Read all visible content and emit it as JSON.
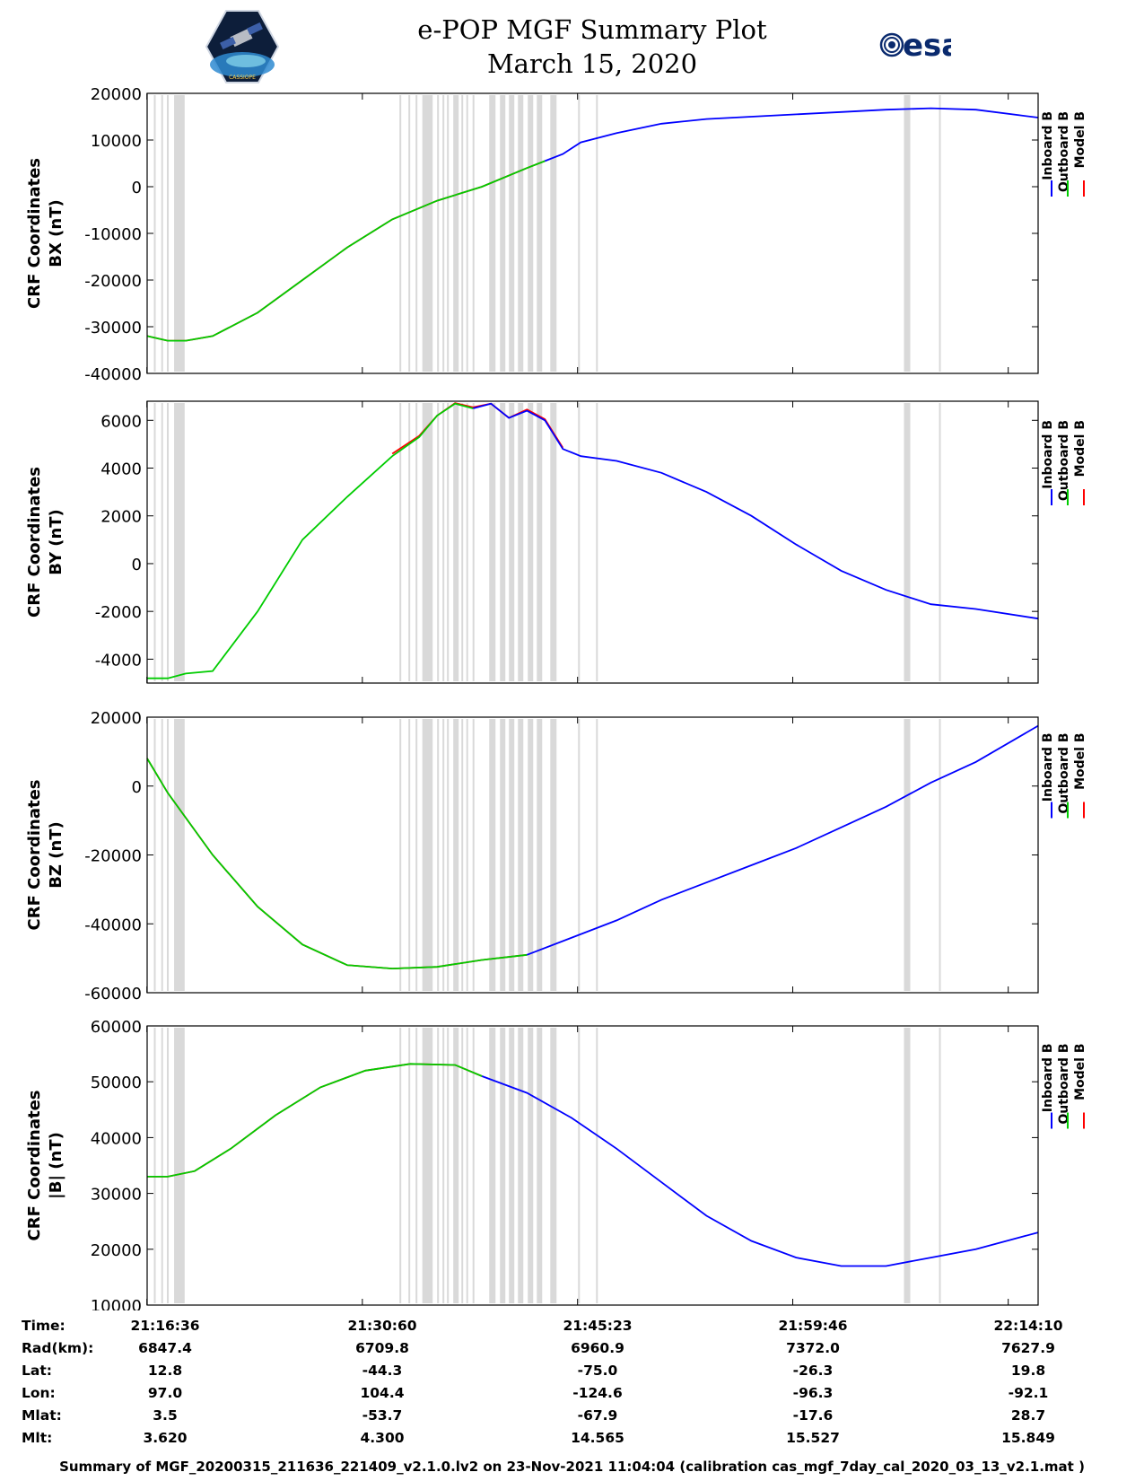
{
  "header": {
    "title_line1": "e-POP MGF Summary Plot",
    "title_line2": "March 15, 2020",
    "left_logo_caption": "CASSIOPE",
    "right_logo_text": "esa"
  },
  "legend": {
    "labels": [
      "Inboard B",
      "Outboard B",
      "Model B"
    ],
    "colors": [
      "#0000ff",
      "#00cc00",
      "#ff0000"
    ]
  },
  "gray_bands": [
    {
      "start": 21.2845,
      "end": 21.286
    },
    {
      "start": 21.2927,
      "end": 21.2942
    },
    {
      "start": 21.299,
      "end": 21.3005
    },
    {
      "start": 21.307,
      "end": 21.3188
    },
    {
      "start": 21.558,
      "end": 21.5596
    },
    {
      "start": 21.568,
      "end": 21.5696
    },
    {
      "start": 21.576,
      "end": 21.5776
    },
    {
      "start": 21.5835,
      "end": 21.595
    },
    {
      "start": 21.6,
      "end": 21.6016
    },
    {
      "start": 21.606,
      "end": 21.6076
    },
    {
      "start": 21.611,
      "end": 21.6126
    },
    {
      "start": 21.618,
      "end": 21.624
    },
    {
      "start": 21.627,
      "end": 21.6286
    },
    {
      "start": 21.6325,
      "end": 21.6341
    },
    {
      "start": 21.6395,
      "end": 21.6411
    },
    {
      "start": 21.658,
      "end": 21.665
    },
    {
      "start": 21.67,
      "end": 21.676
    },
    {
      "start": 21.68,
      "end": 21.686
    },
    {
      "start": 21.69,
      "end": 21.696
    },
    {
      "start": 21.701,
      "end": 21.707
    },
    {
      "start": 21.711,
      "end": 21.717
    },
    {
      "start": 21.726,
      "end": 21.733
    },
    {
      "start": 21.757,
      "end": 21.7586
    },
    {
      "start": 21.777,
      "end": 21.7786
    },
    {
      "start": 22.12,
      "end": 22.127
    },
    {
      "start": 22.159,
      "end": 22.1606
    }
  ],
  "chart_data": [
    {
      "type": "line",
      "panel": "BX",
      "ylabel_line1": "CRF Coordinates",
      "ylabel_line2": "BX (nT)",
      "ylim": [
        -40000,
        20000
      ],
      "yticks": [
        20000,
        10000,
        0,
        -10000,
        -20000,
        -30000,
        -40000
      ],
      "xlim": [
        21.277,
        22.2694
      ],
      "xticks": [
        21.2767,
        21.5167,
        21.7564,
        21.9961,
        22.2361
      ],
      "series": [
        {
          "name": "Inboard B",
          "color": "#0000ff",
          "x": [
            21.72,
            21.74,
            21.76,
            21.8,
            21.85,
            21.9,
            21.95,
            22.0,
            22.05,
            22.1,
            22.15,
            22.2,
            22.2694
          ],
          "y": [
            5500,
            7000,
            9500,
            11500,
            13500,
            14500,
            15000,
            15500,
            16000,
            16500,
            16800,
            16500,
            14800
          ]
        },
        {
          "name": "Outboard B",
          "color": "#00cc00",
          "x": [
            21.277,
            21.3,
            21.32,
            21.35,
            21.4,
            21.45,
            21.5,
            21.55,
            21.6,
            21.65,
            21.7,
            21.72
          ],
          "y": [
            -32000,
            -33000,
            -33000,
            -32000,
            -27000,
            -20000,
            -13000,
            -7000,
            -3000,
            0,
            4000,
            5500
          ]
        },
        {
          "name": "Model B",
          "color": "#ff0000",
          "x": [
            21.277,
            21.3,
            21.32,
            21.35,
            21.4,
            21.45,
            21.5,
            21.55,
            21.6,
            21.65,
            21.7,
            21.72
          ],
          "y": [
            -32000,
            -33000,
            -33000,
            -32000,
            -27000,
            -20000,
            -13000,
            -7000,
            -3000,
            0,
            4000,
            5500
          ]
        }
      ]
    },
    {
      "type": "line",
      "panel": "BY",
      "ylabel_line1": "CRF Coordinates",
      "ylabel_line2": "BY (nT)",
      "ylim": [
        -5000,
        6800
      ],
      "yticks": [
        6000,
        4000,
        2000,
        0,
        -2000,
        -4000
      ],
      "xlim": [
        21.277,
        22.2694
      ],
      "xticks": [
        21.2767,
        21.5167,
        21.7564,
        21.9961,
        22.2361
      ],
      "series": [
        {
          "name": "Inboard B",
          "color": "#0000ff",
          "x": [
            21.64,
            21.66,
            21.68,
            21.7,
            21.72,
            21.74,
            21.76,
            21.8,
            21.85,
            21.9,
            21.95,
            22.0,
            22.05,
            22.1,
            22.15,
            22.2,
            22.2694
          ],
          "y": [
            6500,
            6700,
            6100,
            6400,
            6000,
            4800,
            4500,
            4300,
            3800,
            3000,
            2000,
            800,
            -300,
            -1100,
            -1700,
            -1900,
            -2300
          ]
        },
        {
          "name": "Outboard B",
          "color": "#00cc00",
          "x": [
            21.277,
            21.3,
            21.32,
            21.35,
            21.4,
            21.45,
            21.5,
            21.55,
            21.58,
            21.6,
            21.62,
            21.64
          ],
          "y": [
            -4800,
            -4800,
            -4600,
            -4500,
            -2000,
            1000,
            2800,
            4500,
            5300,
            6200,
            6700,
            6500
          ]
        },
        {
          "name": "Model B",
          "color": "#ff0000",
          "x": [
            21.55,
            21.58,
            21.6,
            21.62,
            21.64,
            21.66,
            21.68,
            21.7,
            21.72,
            21.74
          ],
          "y": [
            4600,
            5350,
            6200,
            6720,
            6550,
            6700,
            6100,
            6450,
            6050,
            4850
          ]
        }
      ]
    },
    {
      "type": "line",
      "panel": "BZ",
      "ylabel_line1": "CRF Coordinates",
      "ylabel_line2": "BZ (nT)",
      "ylim": [
        -60000,
        20000
      ],
      "yticks": [
        20000,
        0,
        -20000,
        -40000,
        -60000
      ],
      "xlim": [
        21.277,
        22.2694
      ],
      "xticks": [
        21.2767,
        21.5167,
        21.7564,
        21.9961,
        22.2361
      ],
      "series": [
        {
          "name": "Inboard B",
          "color": "#0000ff",
          "x": [
            21.7,
            21.75,
            21.8,
            21.85,
            21.9,
            21.95,
            22.0,
            22.05,
            22.1,
            22.15,
            22.2,
            22.2694
          ],
          "y": [
            -49000,
            -44000,
            -39000,
            -33000,
            -28000,
            -23000,
            -18000,
            -12000,
            -6000,
            1000,
            7000,
            17500
          ]
        },
        {
          "name": "Outboard B",
          "color": "#00cc00",
          "x": [
            21.277,
            21.3,
            21.35,
            21.4,
            21.45,
            21.5,
            21.55,
            21.6,
            21.65,
            21.7
          ],
          "y": [
            8000,
            -2000,
            -20000,
            -35000,
            -46000,
            -52000,
            -53000,
            -52500,
            -50500,
            -49000
          ]
        },
        {
          "name": "Model B",
          "color": "#ff0000",
          "x": [
            21.277,
            21.3,
            21.35,
            21.4,
            21.45,
            21.5,
            21.55,
            21.6,
            21.65,
            21.7
          ],
          "y": [
            8000,
            -2000,
            -20000,
            -35000,
            -46000,
            -52000,
            -53000,
            -52500,
            -50500,
            -49000
          ]
        }
      ]
    },
    {
      "type": "line",
      "panel": "|B|",
      "ylabel_line1": "CRF Coordinates",
      "ylabel_line2": "|B| (nT)",
      "ylim": [
        10000,
        60000
      ],
      "yticks": [
        60000,
        50000,
        40000,
        30000,
        20000,
        10000
      ],
      "xlim": [
        21.277,
        22.2694
      ],
      "xticks": [
        21.2767,
        21.5167,
        21.7564,
        21.9961,
        22.2361
      ],
      "series": [
        {
          "name": "Inboard B",
          "color": "#0000ff",
          "x": [
            21.65,
            21.7,
            21.75,
            21.8,
            21.85,
            21.9,
            21.95,
            22.0,
            22.05,
            22.1,
            22.15,
            22.2,
            22.2694
          ],
          "y": [
            51000,
            48000,
            43500,
            38000,
            32000,
            26000,
            21500,
            18500,
            17000,
            17000,
            18500,
            20000,
            23000
          ]
        },
        {
          "name": "Outboard B",
          "color": "#00cc00",
          "x": [
            21.277,
            21.3,
            21.33,
            21.37,
            21.42,
            21.47,
            21.52,
            21.57,
            21.62,
            21.65
          ],
          "y": [
            33000,
            33000,
            34000,
            38000,
            44000,
            49000,
            52000,
            53200,
            53000,
            51000
          ]
        },
        {
          "name": "Model B",
          "color": "#ff0000",
          "x": [
            21.277,
            21.3,
            21.33,
            21.37,
            21.42,
            21.47,
            21.52,
            21.57,
            21.62,
            21.65
          ],
          "y": [
            33000,
            33000,
            34000,
            38000,
            44000,
            49000,
            52000,
            53200,
            53000,
            51000
          ]
        }
      ]
    }
  ],
  "info_table": {
    "rows": [
      {
        "label": "Time:",
        "values": [
          "21:16:36",
          "21:30:60",
          "21:45:23",
          "21:59:46",
          "22:14:10"
        ]
      },
      {
        "label": "Rad(km):",
        "values": [
          "6847.4",
          "6709.8",
          "6960.9",
          "7372.0",
          "7627.9"
        ]
      },
      {
        "label": "Lat:",
        "values": [
          "12.8",
          "-44.3",
          "-75.0",
          "-26.3",
          "19.8"
        ]
      },
      {
        "label": "Lon:",
        "values": [
          "97.0",
          "104.4",
          "-124.6",
          "-96.3",
          "-92.1"
        ]
      },
      {
        "label": "Mlat:",
        "values": [
          "3.5",
          "-53.7",
          "-67.9",
          "-17.6",
          "28.7"
        ]
      },
      {
        "label": "Mlt:",
        "values": [
          "3.620",
          "4.300",
          "14.565",
          "15.527",
          "15.849"
        ]
      }
    ]
  },
  "footer": {
    "text": "Summary of MGF_20200315_211636_221409_v2.1.0.lv2 on 23-Nov-2021 11:04:04 (calibration cas_mgf_7day_cal_2020_03_13_v2.1.mat )"
  }
}
